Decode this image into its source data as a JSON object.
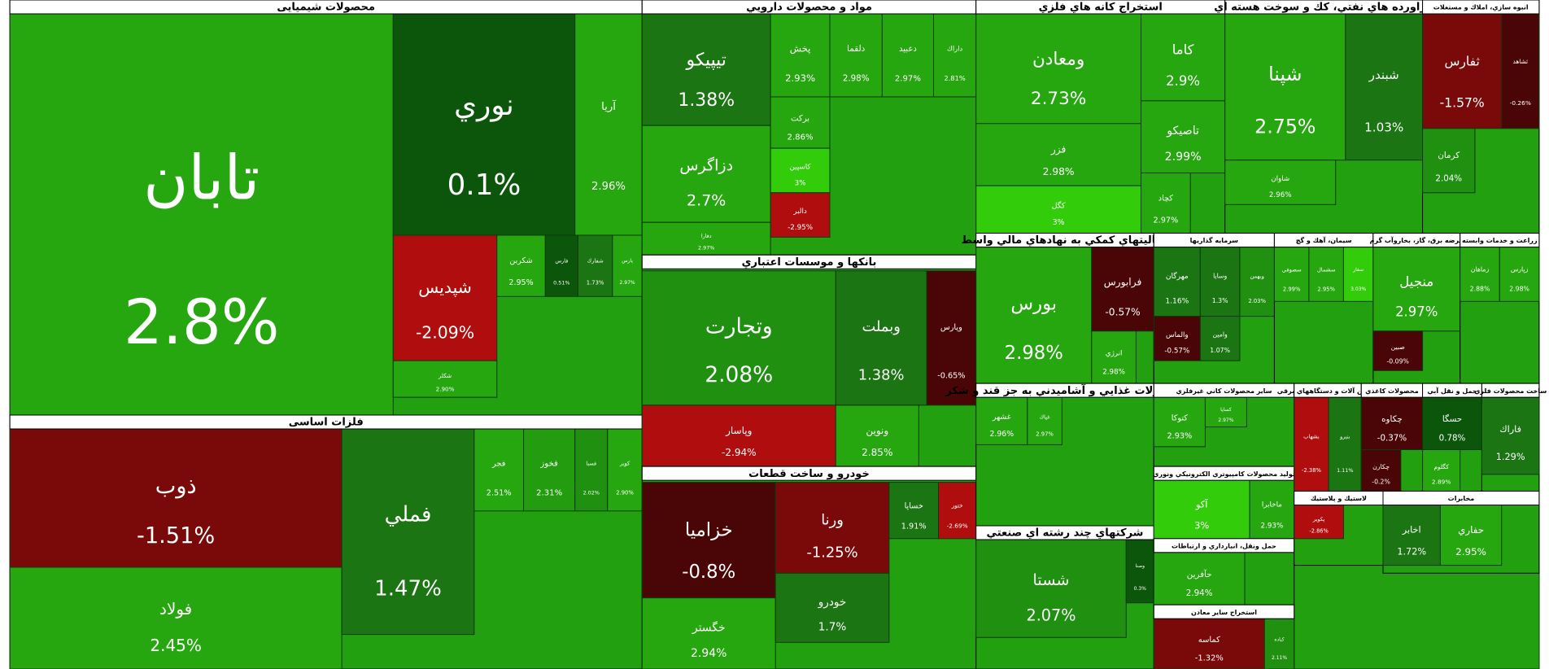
{
  "chart_data": {
    "type": "treemap",
    "groups": [
      {
        "name": "محصولات شیمیایی",
        "names": [
          "تابان",
          "نوري",
          "آريا",
          "شپديس",
          "شكلر",
          "شكربن",
          "فارس",
          "شفارك",
          "پارس"
        ],
        "values": [
          2.8,
          0.1,
          2.96,
          -2.09,
          2.9,
          2.95,
          0.51,
          1.73,
          2.97
        ],
        "value_labels": [
          "2.8%",
          "0.1%",
          "2.96%",
          "-2.09%",
          "2.90%",
          "2.95%",
          "0.51%",
          "1.73%",
          "2.97%"
        ],
        "colors": [
          "#26a60f",
          "#0b560b",
          "#26a60f",
          "#b00e0e",
          "#26a60f",
          "#26a60f",
          "#0b560b",
          "#1b7512",
          "#26a60f"
        ]
      },
      {
        "name": "فلزات اساسی",
        "names": [
          "ذوب",
          "فولاد",
          "فملي",
          "فجر",
          "فخوز",
          "فسبا",
          "كوير"
        ],
        "values": [
          -1.51,
          2.45,
          1.47,
          2.51,
          2.31,
          2.02,
          2.9
        ],
        "value_labels": [
          "-1.51%",
          "2.45%",
          "1.47%",
          "2.51%",
          "2.31%",
          "2.02%",
          "2.90%"
        ],
        "colors": [
          "#7a0a0a",
          "#26a60f",
          "#1b7512",
          "#26a60f",
          "#239c0f",
          "#1f9010",
          "#26a60f"
        ]
      },
      {
        "name": "مواد و محصولات دارويي",
        "names": [
          "تيپيكو",
          "دزاگرس",
          "دفارا",
          "پخش",
          "دلقما",
          "دعبيد",
          "داراك",
          "بركت",
          "كاسپين",
          "دالبر"
        ],
        "values": [
          1.38,
          2.7,
          2.97,
          2.93,
          2.98,
          2.97,
          2.81,
          2.86,
          3,
          -2.95
        ],
        "value_labels": [
          "1.38%",
          "2.7%",
          "2.97%",
          "2.93%",
          "2.98%",
          "2.97%",
          "2.81%",
          "2.86%",
          "3%",
          "-2.95%"
        ],
        "colors": [
          "#1b7512",
          "#26a60f",
          "#26a60f",
          "#26a60f",
          "#26a60f",
          "#26a60f",
          "#26a60f",
          "#26a60f",
          "#33cc0a",
          "#b00e0e"
        ]
      },
      {
        "name": "بانكها و موسسات اعتباري",
        "names": [
          "وتجارت",
          "وبملت",
          "وپارس",
          "وپاسار",
          "ونوين"
        ],
        "values": [
          2.08,
          1.38,
          -0.65,
          -2.94,
          2.85
        ],
        "value_labels": [
          "2.08%",
          "1.38%",
          "-0.65%",
          "-2.94%",
          "2.85%"
        ],
        "colors": [
          "#1f9010",
          "#1b7512",
          "#4a0606",
          "#b00e0e",
          "#26a60f"
        ]
      },
      {
        "name": "خودرو و ساخت قطعات",
        "names": [
          "خزاميا",
          "خگستر",
          "ورنا",
          "خودرو",
          "خساپا",
          "ختور"
        ],
        "values": [
          -0.8,
          2.94,
          -1.25,
          1.7,
          1.91,
          -2.69
        ],
        "value_labels": [
          "-0.8%",
          "2.94%",
          "-1.25%",
          "1.7%",
          "1.91%",
          "-2.69%"
        ],
        "colors": [
          "#4a0606",
          "#26a60f",
          "#7a0a0a",
          "#1b7512",
          "#1b7512",
          "#b00e0e"
        ]
      },
      {
        "name": "استخراج كانه هاي فلزي",
        "names": [
          "ومعادن",
          "فزر",
          "كگل",
          "كاما",
          "تاصيكو",
          "كچاد"
        ],
        "values": [
          2.73,
          2.98,
          3,
          2.9,
          2.99,
          2.97
        ],
        "value_labels": [
          "2.73%",
          "2.98%",
          "3%",
          "2.9%",
          "2.99%",
          "2.97%"
        ],
        "colors": [
          "#26a60f",
          "#26a60f",
          "#33cc0a",
          "#26a60f",
          "#26a60f",
          "#26a60f"
        ]
      },
      {
        "name": "فراورده هاي نفتي، كك و سوخت هسته اي",
        "names": [
          "شپنا",
          "شبندر",
          "شاوان"
        ],
        "values": [
          2.75,
          1.03,
          2.96
        ],
        "value_labels": [
          "2.75%",
          "1.03%",
          "2.96%"
        ],
        "colors": [
          "#26a60f",
          "#1b7512",
          "#26a60f"
        ]
      },
      {
        "name": "انبوه سازي، املاك و مستغلات",
        "names": [
          "ثفارس",
          "ثشاهد",
          "كرمان"
        ],
        "values": [
          -1.57,
          -0.26,
          2.04
        ],
        "value_labels": [
          "-1.57%",
          "-0.26%",
          "2.04%"
        ],
        "colors": [
          "#7a0a0a",
          "#4a0606",
          "#1f9010"
        ]
      },
      {
        "name": "فعاليتهاي كمكي به نهادهاي مالي واسط",
        "names": [
          "بورس",
          "فرابورس",
          "انرژي"
        ],
        "values": [
          2.98,
          -0.57,
          2.98
        ],
        "value_labels": [
          "2.98%",
          "-0.57%",
          "2.98%"
        ],
        "colors": [
          "#26a60f",
          "#4a0606",
          "#26a60f"
        ]
      },
      {
        "name": "سرمايه گذاريها",
        "names": [
          "مهرگان",
          "وسايا",
          "وبهمن",
          "والماس",
          "وامين"
        ],
        "values": [
          1.16,
          1.3,
          2.03,
          -0.57,
          1.07
        ],
        "value_labels": [
          "1.16%",
          "1.3%",
          "2.03%",
          "-0.57%",
          "1.07%"
        ],
        "colors": [
          "#1b7512",
          "#1b7512",
          "#1f9010",
          "#4a0606",
          "#1b7512"
        ]
      },
      {
        "name": "سيمان، آهك و گچ",
        "names": [
          "سصوفي",
          "سشمال",
          "سفار"
        ],
        "values": [
          2.99,
          2.95,
          3.03
        ],
        "value_labels": [
          "2.99%",
          "2.95%",
          "3.03%"
        ],
        "colors": [
          "#26a60f",
          "#26a60f",
          "#33cc0a"
        ]
      },
      {
        "name": "عرضه برق، گاز، بخاروآب گرم",
        "names": [
          "منجيل",
          "صبين"
        ],
        "values": [
          2.97,
          -0.09
        ],
        "value_labels": [
          "2.97%",
          "-0.09%"
        ],
        "colors": [
          "#26a60f",
          "#4a0606"
        ]
      },
      {
        "name": "زراعت و خدمات وابسته",
        "names": [
          "زماهان",
          "زپارس"
        ],
        "values": [
          2.88,
          2.98
        ],
        "value_labels": [
          "2.88%",
          "2.98%"
        ],
        "colors": [
          "#26a60f",
          "#26a60f"
        ]
      },
      {
        "name": "محصولات غذايي و آشاميدني به جز قند و شكر",
        "names": [
          "غشهر",
          "غپاك"
        ],
        "values": [
          2.96,
          2.97
        ],
        "value_labels": [
          "2.96%",
          "2.97%"
        ],
        "colors": [
          "#26a60f",
          "#26a60f"
        ]
      },
      {
        "name": "شركتهاي چند رشته اي صنعتي",
        "names": [
          "شستا",
          "وصنا"
        ],
        "values": [
          2.07,
          0.3
        ],
        "value_labels": [
          "2.07%",
          "0.3%"
        ],
        "colors": [
          "#1f9010",
          "#0b560b"
        ]
      },
      {
        "name": "ساير محصولات كاني غيرفلزي",
        "names": [
          "كتوكا",
          "كساپا"
        ],
        "values": [
          2.93,
          2.97
        ],
        "value_labels": [
          "2.93%",
          "2.97%"
        ],
        "colors": [
          "#26a60f",
          "#26a60f"
        ]
      },
      {
        "name": "توليد محصولات كامپيوتري الكترونيكي ونوري",
        "names": [
          "آكو",
          "ماخابرا"
        ],
        "values": [
          3,
          2.93
        ],
        "value_labels": [
          "3%",
          "2.93%"
        ],
        "colors": [
          "#33cc0a",
          "#26a60f"
        ]
      },
      {
        "name": "حمل ونقل، انبارداري و ارتباطات",
        "names": [
          "حآفرين"
        ],
        "values": [
          2.94
        ],
        "value_labels": [
          "2.94%"
        ],
        "colors": [
          "#26a60f"
        ]
      },
      {
        "name": "استخراج ساير معادن",
        "names": [
          "كماسه",
          "كباده"
        ],
        "values": [
          -1.32,
          2.11
        ],
        "value_labels": [
          "-1.32%",
          "2.11%"
        ],
        "colors": [
          "#7a0a0a",
          "#1f9010"
        ]
      },
      {
        "name": "ماشين آلات و دستگاههاي برقي",
        "names": [
          "بشهاب",
          "بنيرو"
        ],
        "values": [
          -2.38,
          1.11
        ],
        "value_labels": [
          "-2.38%",
          "1.11%"
        ],
        "colors": [
          "#b00e0e",
          "#1b7512"
        ]
      },
      {
        "name": "محصولات كاغذي",
        "names": [
          "چكاوه",
          "چكارن"
        ],
        "values": [
          -0.37,
          -0.2
        ],
        "value_labels": [
          "-0.37%",
          "-0.2%"
        ],
        "colors": [
          "#4a0606",
          "#4a0606"
        ]
      },
      {
        "name": "حمل و نقل آبي",
        "names": [
          "حسگا",
          "كگلوم"
        ],
        "values": [
          0.78,
          2.89
        ],
        "value_labels": [
          "0.78%",
          "2.89%"
        ],
        "colors": [
          "#0b560b",
          "#26a60f"
        ]
      },
      {
        "name": "ساخت محصولات فلزي",
        "names": [
          "فاراك"
        ],
        "values": [
          1.29
        ],
        "value_labels": [
          "1.29%"
        ],
        "colors": [
          "#1b7512"
        ]
      },
      {
        "name": "لاستيك و پلاستيك",
        "names": [
          "پكوير"
        ],
        "values": [
          -2.86
        ],
        "value_labels": [
          "-2.86%"
        ],
        "colors": [
          "#b00e0e"
        ]
      },
      {
        "name": "مخابرات",
        "names": [
          "اخابر",
          "حفاري"
        ],
        "values": [
          1.72,
          2.95
        ],
        "value_labels": [
          "1.72%",
          "2.95%"
        ],
        "colors": [
          "#1b7512",
          "#26a60f"
        ]
      }
    ]
  }
}
